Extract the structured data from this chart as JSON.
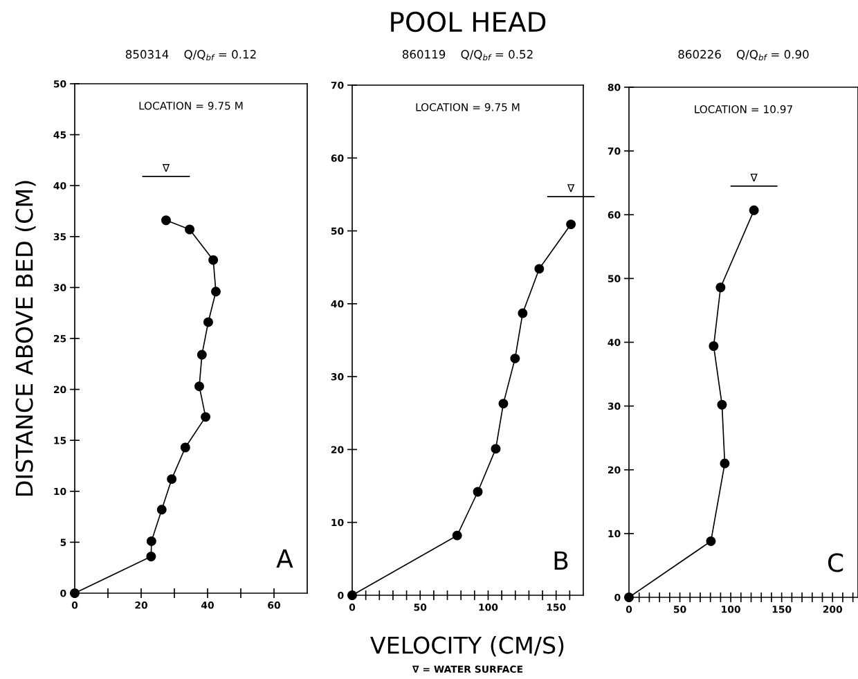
{
  "chart_data": [
    {
      "type": "line",
      "subtitle": "850314    Q/Q$_{bf}$ = 0.12",
      "ylabel": "DISTANCE ABOVE BED (CM)",
      "series": [
        {
          "color": "#000000",
          "x": [
            0,
            23.0,
            23.1,
            26.2,
            29.2,
            33.3,
            39.4,
            37.5,
            38.3,
            40.2,
            42.5,
            41.7,
            34.6,
            27.5
          ],
          "values": [
            0,
            3.6,
            5.1,
            8.2,
            11.2,
            14.3,
            17.3,
            20.3,
            23.4,
            26.6,
            29.6,
            32.7,
            35.7,
            36.6
          ]
        }
      ],
      "annotations": [
        "LOCATION = 9.75 M",
        "A"
      ],
      "ref_lines": [
        {
          "axis": "y",
          "value": 40.9,
          "label": "∇"
        }
      ],
      "xlim": [
        0,
        70
      ],
      "xticks": [
        0,
        {
          "value": 10,
          "label": null
        },
        20,
        {
          "value": 30,
          "label": null
        },
        40,
        {
          "value": 50,
          "label": null
        },
        60
      ],
      "ylim": [
        0,
        50
      ],
      "yticks": [
        0,
        5,
        10,
        15,
        20,
        25,
        30,
        35,
        40,
        45,
        50
      ],
      "marker": "circle",
      "line_style": "solid",
      "grid": false,
      "legend": false
    },
    {
      "type": "line",
      "title": "POOL HEAD",
      "subtitle": "860119    Q/Q$_{bf}$ = 0.52",
      "xlabel": "VELOCITY (CM/S)",
      "series": [
        {
          "color": "#000000",
          "x": [
            0,
            77.2,
            92.4,
            105.6,
            111.2,
            119.8,
            125.4,
            137.6,
            160.9
          ],
          "values": [
            0,
            8.2,
            14.2,
            20.1,
            26.3,
            32.5,
            38.7,
            44.8,
            50.9
          ]
        }
      ],
      "annotations": [
        "LOCATION = 9.75 M",
        "B",
        "∇ = WATER SURFACE"
      ],
      "ref_lines": [
        {
          "axis": "y",
          "value": 54.7,
          "label": "∇"
        }
      ],
      "xlim": [
        0,
        170
      ],
      "xticks": [
        0,
        {
          "value": 10,
          "label": null
        },
        {
          "value": 20,
          "label": null
        },
        {
          "value": 30,
          "label": null
        },
        {
          "value": 40,
          "label": null
        },
        50,
        {
          "value": 60,
          "label": null
        },
        {
          "value": 70,
          "label": null
        },
        {
          "value": 80,
          "label": null
        },
        {
          "value": 90,
          "label": null
        },
        100,
        {
          "value": 110,
          "label": null
        },
        {
          "value": 120,
          "label": null
        },
        {
          "value": 130,
          "label": null
        },
        {
          "value": 140,
          "label": null
        },
        150,
        {
          "value": 160,
          "label": null
        }
      ],
      "ylim": [
        0,
        70
      ],
      "yticks": [
        0,
        10,
        20,
        30,
        40,
        50,
        60,
        70
      ],
      "marker": "circle",
      "line_style": "solid",
      "grid": false,
      "legend": false
    },
    {
      "type": "line",
      "subtitle": "860226    Q/Q$_{bf}$ = 0.90",
      "series": [
        {
          "color": "#000000",
          "x": [
            0,
            80.5,
            94.1,
            91.4,
            83.2,
            90.0,
            122.8
          ],
          "values": [
            0,
            8.8,
            21.0,
            30.2,
            39.4,
            48.6,
            60.7
          ]
        }
      ],
      "annotations": [
        "LOCATION = 10.97",
        "C"
      ],
      "ref_lines": [
        {
          "axis": "y",
          "value": 64.5,
          "label": "∇"
        }
      ],
      "xlim": [
        0,
        225
      ],
      "xticks": [
        0,
        {
          "value": 10,
          "label": null
        },
        {
          "value": 20,
          "label": null
        },
        {
          "value": 30,
          "label": null
        },
        {
          "value": 40,
          "label": null
        },
        50,
        {
          "value": 60,
          "label": null
        },
        {
          "value": 70,
          "label": null
        },
        {
          "value": 80,
          "label": null
        },
        {
          "value": 90,
          "label": null
        },
        100,
        {
          "value": 110,
          "label": null
        },
        {
          "value": 120,
          "label": null
        },
        {
          "value": 130,
          "label": null
        },
        {
          "value": 140,
          "label": null
        },
        150,
        {
          "value": 160,
          "label": null
        },
        {
          "value": 170,
          "label": null
        },
        {
          "value": 180,
          "label": null
        },
        {
          "value": 190,
          "label": null
        },
        200,
        {
          "value": 210,
          "label": null
        },
        {
          "value": 220,
          "label": null
        }
      ],
      "ylim": [
        0,
        80
      ],
      "yticks": [
        0,
        10,
        20,
        30,
        40,
        50,
        60,
        70,
        80
      ],
      "marker": "circle",
      "line_style": "solid",
      "grid": false,
      "legend": false
    }
  ]
}
